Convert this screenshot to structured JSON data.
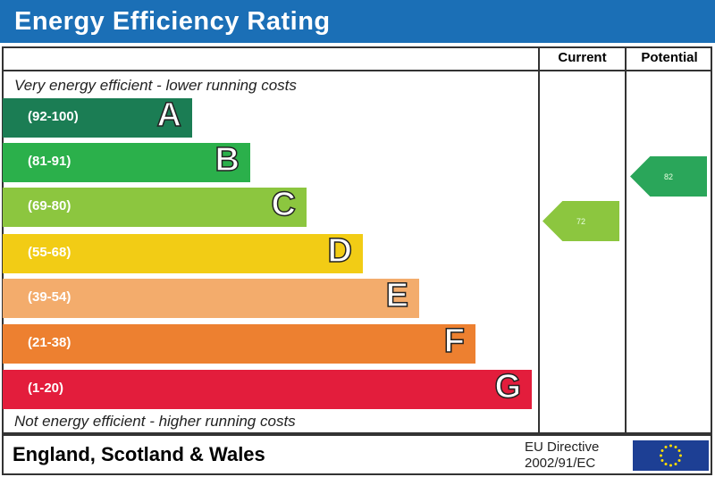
{
  "title": "Energy Efficiency Rating",
  "columns": {
    "current": "Current",
    "potential": "Potential"
  },
  "top_caption": "Very energy efficient - lower running costs",
  "bottom_caption": "Not energy efficient - higher running costs",
  "footer": {
    "country": "England, Scotland & Wales",
    "directive_line1": "EU Directive",
    "directive_line2": "2002/91/EC"
  },
  "chart_data": {
    "type": "bar",
    "categories": [
      "A",
      "B",
      "C",
      "D",
      "E",
      "F",
      "G"
    ],
    "bands": [
      {
        "letter": "A",
        "range": "(92-100)",
        "color": "#1b7d54"
      },
      {
        "letter": "B",
        "range": "(81-91)",
        "color": "#2bb04b"
      },
      {
        "letter": "C",
        "range": "(69-80)",
        "color": "#8cc63f"
      },
      {
        "letter": "D",
        "range": "(55-68)",
        "color": "#f2cc15"
      },
      {
        "letter": "E",
        "range": "(39-54)",
        "color": "#f3ac6c"
      },
      {
        "letter": "F",
        "range": "(21-38)",
        "color": "#ed8030"
      },
      {
        "letter": "G",
        "range": "(1-20)",
        "color": "#e31d3c"
      }
    ],
    "current": {
      "value": 72,
      "band": "C",
      "color": "#8cc63f"
    },
    "potential": {
      "value": 82,
      "band": "B",
      "color": "#2aa65a"
    }
  }
}
